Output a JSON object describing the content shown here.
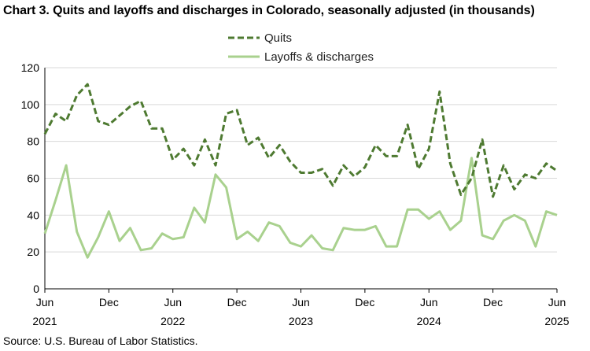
{
  "chart_data": {
    "type": "line",
    "title": "Chart 3. Quits and layoffs and discharges in Colorado, seasonally adjusted (in thousands)",
    "source": "Source: U.S. Bureau of Labor Statistics.",
    "ylim": [
      0,
      120
    ],
    "yticks": [
      "0",
      "20",
      "40",
      "60",
      "80",
      "100",
      "120"
    ],
    "xtick_labels": [
      {
        "index": 0,
        "month": "Jun",
        "year": "2021"
      },
      {
        "index": 6,
        "month": "Dec",
        "year": ""
      },
      {
        "index": 12,
        "month": "Jun",
        "year": "2022"
      },
      {
        "index": 18,
        "month": "Dec",
        "year": ""
      },
      {
        "index": 24,
        "month": "Jun",
        "year": "2023"
      },
      {
        "index": 30,
        "month": "Dec",
        "year": ""
      },
      {
        "index": 36,
        "month": "Jun",
        "year": "2024"
      },
      {
        "index": 42,
        "month": "Dec",
        "year": ""
      },
      {
        "index": 48,
        "month": "Jun",
        "year": "2025"
      }
    ],
    "grid": true,
    "legend_position": "top-center",
    "series": [
      {
        "name": "Quits",
        "color": "#4e7a31",
        "style": "dashed",
        "values": [
          84,
          95,
          91,
          105,
          111,
          91,
          89,
          94,
          99,
          102,
          87,
          87,
          70,
          76,
          67,
          81,
          67,
          95,
          97,
          78,
          82,
          71,
          78,
          69,
          63,
          63,
          65,
          56,
          67,
          61,
          66,
          78,
          72,
          72,
          89,
          65,
          76,
          107,
          68,
          51,
          60,
          81,
          50,
          67,
          54,
          62,
          60,
          68,
          64
        ]
      },
      {
        "name": "Layoffs & discharges",
        "color": "#a9d18e",
        "style": "solid",
        "values": [
          30,
          48,
          67,
          31,
          17,
          28,
          42,
          26,
          33,
          21,
          22,
          30,
          27,
          28,
          44,
          36,
          62,
          55,
          27,
          31,
          26,
          36,
          34,
          25,
          23,
          29,
          22,
          21,
          33,
          32,
          32,
          34,
          23,
          23,
          43,
          43,
          38,
          42,
          32,
          37,
          71,
          29,
          27,
          37,
          40,
          37,
          23,
          42,
          40
        ]
      }
    ]
  }
}
